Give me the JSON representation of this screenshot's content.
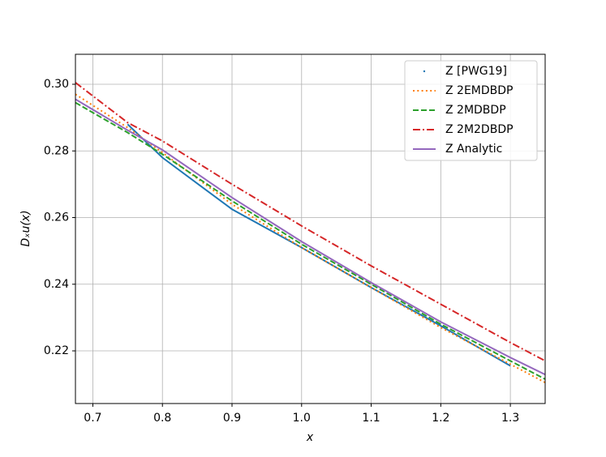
{
  "chart_data": {
    "type": "line",
    "xlabel": "x",
    "ylabel": "Dₓu(x)",
    "x": [
      0.675,
      0.75,
      0.8,
      0.9,
      1.0,
      1.1,
      1.2,
      1.3,
      1.35
    ],
    "series": [
      {
        "name": "Z [PWG19]",
        "color": "#1f77b4",
        "style": "point",
        "values": [
          null,
          0.288,
          0.278,
          0.2625,
          0.251,
          0.239,
          0.2275,
          0.2155,
          null
        ]
      },
      {
        "name": "Z 2EMDBDP",
        "color": "#ff7f0e",
        "style": "dotted",
        "values": [
          0.297,
          0.287,
          0.2795,
          0.264,
          0.251,
          0.239,
          0.227,
          0.216,
          0.2105
        ]
      },
      {
        "name": "Z 2MDBDP",
        "color": "#2ca02c",
        "style": "dashed",
        "values": [
          0.2945,
          0.2855,
          0.279,
          0.265,
          0.252,
          0.24,
          0.228,
          0.217,
          0.2115
        ]
      },
      {
        "name": "Z 2M2DBDP",
        "color": "#d62728",
        "style": "dashdot",
        "values": [
          0.3005,
          0.2885,
          0.283,
          0.27,
          0.2575,
          0.2455,
          0.234,
          0.2225,
          0.217
        ]
      },
      {
        "name": "Z Analytic",
        "color": "#9467bd",
        "style": "solid",
        "values": [
          0.2955,
          0.2862,
          0.2803,
          0.266,
          0.2528,
          0.2405,
          0.2287,
          0.218,
          0.2129
        ]
      }
    ],
    "xlim": [
      0.675,
      1.35
    ],
    "ylim": [
      0.2042,
      0.309
    ],
    "xticks": [
      0.7,
      0.8,
      0.9,
      {
        "value": 1.0,
        "label": "1.0"
      },
      1.1,
      1.2,
      1.3
    ],
    "yticks": [
      0.22,
      0.24,
      0.26,
      0.28,
      {
        "value": 0.3,
        "label": "0.30"
      }
    ],
    "grid": true,
    "legend": "upper right"
  }
}
